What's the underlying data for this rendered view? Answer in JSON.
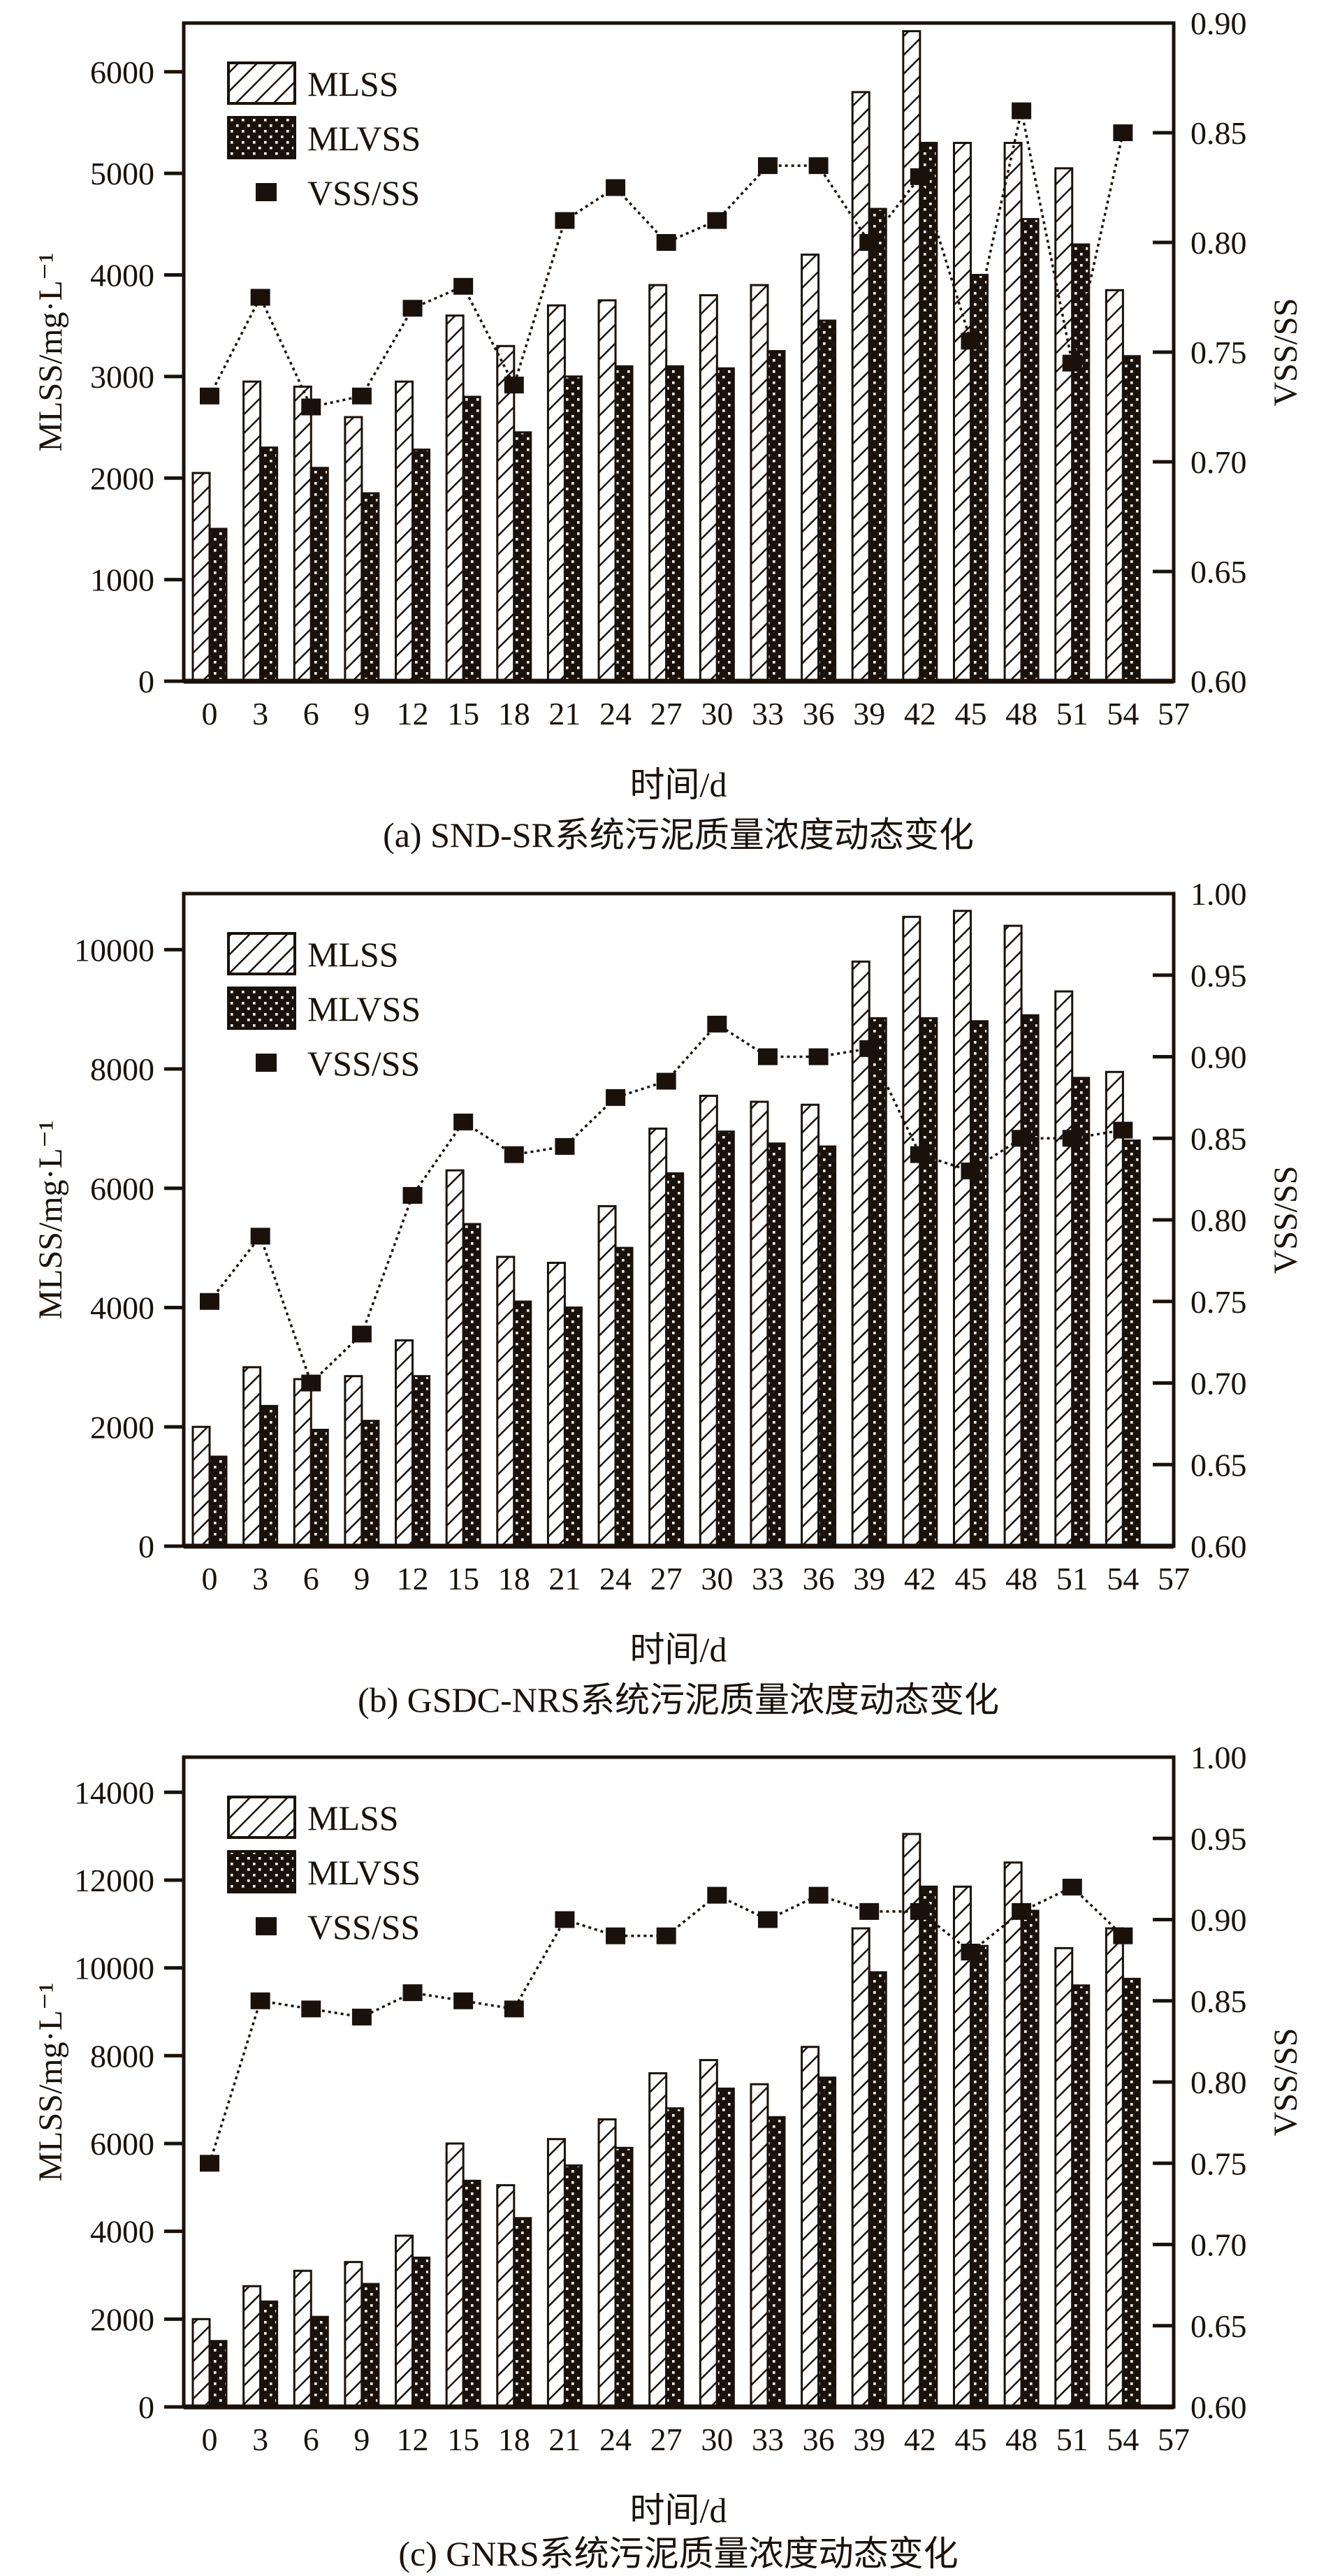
{
  "figure": {
    "background": "#ffffff",
    "ink": "#1a120a"
  },
  "chart_data": [
    {
      "panel": "a",
      "type": "bar+line",
      "title": "(a) SND-SR系统污泥质量浓度动态变化",
      "xlabel": "时间/d",
      "ylabel_left": "MLSS/mg·L⁻¹",
      "ylabel_right": "VSS/SS",
      "legend": [
        "MLSS",
        "MLVSS",
        "VSS/SS"
      ],
      "x_ticks": [
        0,
        3,
        6,
        9,
        12,
        15,
        18,
        21,
        24,
        27,
        30,
        33,
        36,
        39,
        42,
        45,
        48,
        51,
        54,
        57
      ],
      "categories": [
        0,
        3,
        6,
        9,
        12,
        15,
        18,
        21,
        24,
        27,
        30,
        33,
        36,
        39,
        42,
        45,
        48,
        51,
        54
      ],
      "left_axis": {
        "min": 0,
        "max": 6480,
        "ticks": [
          0,
          1000,
          2000,
          3000,
          4000,
          5000,
          6000
        ]
      },
      "right_axis": {
        "min": 0.6,
        "max": 0.9,
        "ticks": [
          0.6,
          0.65,
          0.7,
          0.75,
          0.8,
          0.85,
          0.9
        ],
        "decimals": 2
      },
      "series": [
        {
          "name": "MLSS",
          "type": "bar",
          "pattern": "hatch",
          "axis": "left",
          "values": [
            2050,
            2950,
            2900,
            2600,
            2950,
            3600,
            3300,
            3700,
            3750,
            3900,
            3800,
            3900,
            4200,
            5800,
            6400,
            5300,
            5300,
            5050,
            3850
          ]
        },
        {
          "name": "MLVSS",
          "type": "bar",
          "pattern": "dots",
          "axis": "left",
          "values": [
            1500,
            2300,
            2100,
            1850,
            2280,
            2800,
            2450,
            3000,
            3100,
            3100,
            3080,
            3250,
            3550,
            4650,
            5300,
            4000,
            4550,
            4300,
            3200
          ]
        },
        {
          "name": "VSS/SS",
          "type": "scatter-line",
          "axis": "right",
          "values": [
            0.73,
            0.775,
            0.725,
            0.73,
            0.77,
            0.78,
            0.735,
            0.81,
            0.825,
            0.8,
            0.81,
            0.835,
            0.835,
            0.8,
            0.83,
            0.755,
            0.86,
            0.745,
            0.85
          ]
        }
      ]
    },
    {
      "panel": "b",
      "type": "bar+line",
      "title": "(b) GSDC-NRS系统污泥质量浓度动态变化",
      "xlabel": "时间/d",
      "ylabel_left": "MLSS/mg·L⁻¹",
      "ylabel_right": "VSS/SS",
      "legend": [
        "MLSS",
        "MLVSS",
        "VSS/SS"
      ],
      "x_ticks": [
        0,
        3,
        6,
        9,
        12,
        15,
        18,
        21,
        24,
        27,
        30,
        33,
        36,
        39,
        42,
        45,
        48,
        51,
        54,
        57
      ],
      "categories": [
        0,
        3,
        6,
        9,
        12,
        15,
        18,
        21,
        24,
        27,
        30,
        33,
        36,
        39,
        42,
        45,
        48,
        51,
        54
      ],
      "left_axis": {
        "min": 0,
        "max": 10940,
        "ticks": [
          0,
          2000,
          4000,
          6000,
          8000,
          10000
        ]
      },
      "right_axis": {
        "min": 0.6,
        "max": 1.0,
        "ticks": [
          0.6,
          0.65,
          0.7,
          0.75,
          0.8,
          0.85,
          0.9,
          0.95,
          1.0
        ],
        "decimals": 2
      },
      "series": [
        {
          "name": "MLSS",
          "type": "bar",
          "pattern": "hatch",
          "axis": "left",
          "values": [
            2000,
            3000,
            2800,
            2850,
            3450,
            6300,
            4850,
            4750,
            5700,
            7000,
            7550,
            7450,
            7400,
            9800,
            10550,
            10650,
            10400,
            9300,
            7950
          ]
        },
        {
          "name": "MLVSS",
          "type": "bar",
          "pattern": "dots",
          "axis": "left",
          "values": [
            1500,
            2350,
            1950,
            2100,
            2850,
            5400,
            4100,
            4000,
            5000,
            6250,
            6950,
            6750,
            6700,
            8850,
            8850,
            8800,
            8900,
            7850,
            6800
          ]
        },
        {
          "name": "VSS/SS",
          "type": "scatter-line",
          "axis": "right",
          "values": [
            0.75,
            0.79,
            0.7,
            0.73,
            0.815,
            0.86,
            0.84,
            0.845,
            0.875,
            0.885,
            0.92,
            0.9,
            0.9,
            0.905,
            0.84,
            0.83,
            0.85,
            0.85,
            0.855
          ]
        }
      ]
    },
    {
      "panel": "c",
      "type": "bar+line",
      "title": "(c) GNRS系统污泥质量浓度动态变化",
      "xlabel": "时间/d",
      "ylabel_left": "MLSS/mg·L⁻¹",
      "ylabel_right": "VSS/SS",
      "legend": [
        "MLSS",
        "MLVSS",
        "VSS/SS"
      ],
      "x_ticks": [
        0,
        3,
        6,
        9,
        12,
        15,
        18,
        21,
        24,
        27,
        30,
        33,
        36,
        39,
        42,
        45,
        48,
        51,
        54,
        57
      ],
      "categories": [
        0,
        3,
        6,
        9,
        12,
        15,
        18,
        21,
        24,
        27,
        30,
        33,
        36,
        39,
        42,
        45,
        48,
        51,
        54
      ],
      "left_axis": {
        "min": 0,
        "max": 14800,
        "ticks": [
          0,
          2000,
          4000,
          6000,
          8000,
          10000,
          12000,
          14000
        ]
      },
      "right_axis": {
        "min": 0.6,
        "max": 1.0,
        "ticks": [
          0.6,
          0.65,
          0.7,
          0.75,
          0.8,
          0.85,
          0.9,
          0.95,
          1.0
        ],
        "decimals": 2
      },
      "series": [
        {
          "name": "MLSS",
          "type": "bar",
          "pattern": "hatch",
          "axis": "left",
          "values": [
            2000,
            2750,
            3100,
            3300,
            3900,
            6000,
            5050,
            6100,
            6550,
            7600,
            7900,
            7350,
            8200,
            10900,
            13050,
            11850,
            12400,
            10450,
            10900
          ]
        },
        {
          "name": "MLVSS",
          "type": "bar",
          "pattern": "dots",
          "axis": "left",
          "values": [
            1500,
            2400,
            2050,
            2800,
            3400,
            5150,
            4300,
            5500,
            5900,
            6800,
            7250,
            6600,
            7500,
            9900,
            11850,
            10500,
            11300,
            9600,
            9750
          ]
        },
        {
          "name": "VSS/SS",
          "type": "scatter-line",
          "axis": "right",
          "values": [
            0.75,
            0.85,
            0.845,
            0.84,
            0.855,
            0.85,
            0.845,
            0.9,
            0.89,
            0.89,
            0.915,
            0.9,
            0.915,
            0.905,
            0.905,
            0.88,
            0.905,
            0.92,
            0.89
          ]
        }
      ]
    }
  ]
}
